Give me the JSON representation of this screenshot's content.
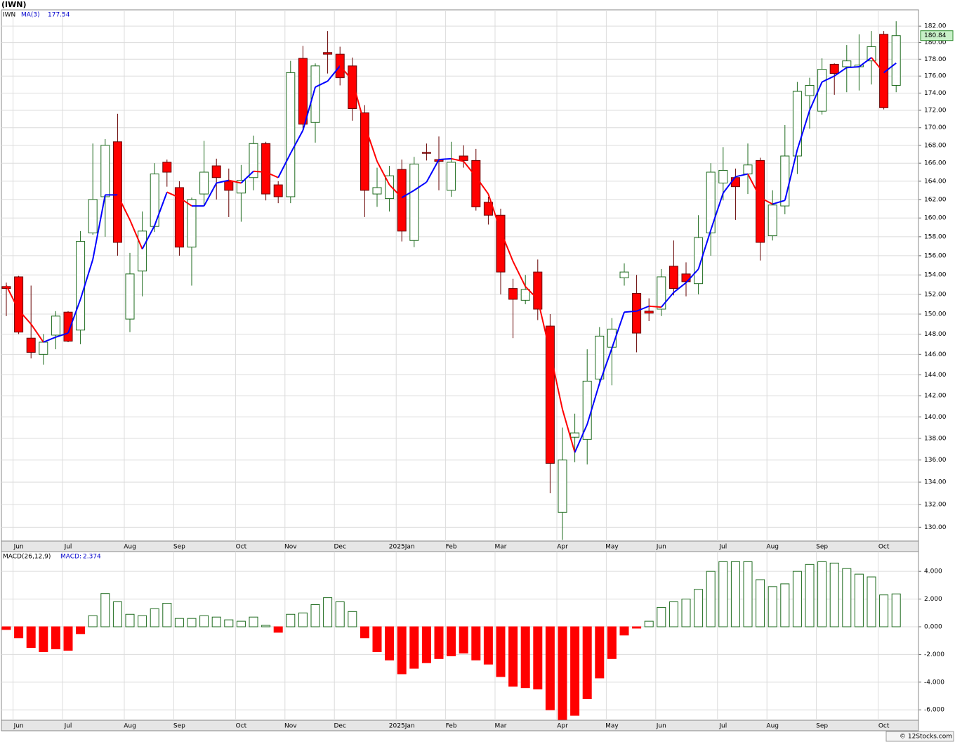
{
  "chart_data": [
    {
      "type": "candlestick",
      "title": "(IWN)",
      "symbol": "IWN",
      "log_y": true,
      "grid": true,
      "categories": [
        null,
        "Jun",
        null,
        null,
        null,
        "Jul",
        null,
        null,
        null,
        null,
        "Aug",
        null,
        null,
        null,
        "Sep",
        null,
        null,
        null,
        null,
        "Oct",
        null,
        null,
        null,
        "Nov",
        null,
        null,
        null,
        "Dec",
        null,
        null,
        null,
        null,
        "2025Jan",
        null,
        null,
        null,
        "Feb",
        null,
        null,
        null,
        "Mar",
        null,
        null,
        null,
        null,
        "Apr",
        null,
        null,
        null,
        "May",
        null,
        null,
        null,
        "Jun",
        null,
        null,
        null,
        null,
        "Jul",
        null,
        null,
        null,
        "Aug",
        null,
        null,
        null,
        "Sep",
        null,
        null,
        null,
        null,
        "Oct",
        null
      ],
      "open": [
        152.8,
        153.8,
        147.6,
        146.0,
        147.9,
        150.2,
        148.4,
        158.4,
        162.3,
        168.4,
        149.5,
        154.4,
        159.1,
        166.1,
        163.3,
        156.9,
        162.6,
        165.7,
        164.0,
        162.7,
        164.4,
        168.2,
        163.6,
        162.3,
        178.1,
        170.6,
        178.8,
        178.6,
        177.2,
        171.7,
        162.6,
        162.1,
        165.3,
        157.6,
        167.2,
        166.4,
        163.0,
        166.8,
        166.3,
        161.7,
        160.3,
        152.6,
        151.4,
        154.3,
        148.8,
        131.3,
        138.1,
        137.9,
        143.6,
        146.7,
        153.7,
        152.1,
        150.3,
        150.5,
        154.9,
        154.1,
        153.1,
        158.4,
        163.8,
        164.4,
        164.8,
        166.3,
        158.1,
        161.3,
        166.8,
        173.7,
        171.9,
        177.4,
        177.1,
        177.1,
        177.8,
        181.0,
        174.9
      ],
      "high": [
        153.2,
        153.9,
        152.9,
        148.0,
        150.3,
        150.3,
        158.6,
        168.2,
        168.7,
        171.6,
        156.3,
        160.7,
        166.0,
        166.4,
        164.0,
        162.2,
        168.5,
        166.5,
        165.4,
        165.8,
        169.1,
        168.4,
        164.0,
        177.8,
        179.6,
        177.5,
        181.4,
        179.5,
        178.2,
        172.6,
        165.5,
        165.7,
        166.4,
        166.7,
        168.2,
        169.0,
        168.4,
        168.0,
        167.6,
        162.3,
        161.0,
        153.6,
        154.0,
        155.6,
        150.0,
        139.0,
        140.3,
        146.5,
        148.7,
        149.6,
        155.2,
        154.0,
        151.6,
        154.6,
        157.6,
        155.3,
        160.3,
        166.0,
        167.8,
        165.4,
        168.2,
        166.6,
        163.0,
        170.3,
        175.3,
        175.8,
        178.1,
        177.5,
        179.7,
        181.0,
        181.4,
        181.4,
        182.6
      ],
      "low": [
        149.8,
        148.0,
        145.6,
        145.0,
        146.5,
        147.2,
        147.0,
        158.2,
        158.0,
        156.0,
        148.2,
        151.8,
        158.5,
        163.4,
        156.0,
        152.9,
        161.3,
        162.0,
        160.1,
        159.6,
        163.0,
        161.9,
        161.6,
        161.6,
        169.9,
        168.3,
        176.3,
        174.9,
        170.8,
        160.1,
        161.2,
        160.7,
        157.5,
        156.9,
        166.3,
        163.0,
        162.3,
        165.5,
        160.8,
        159.3,
        152.0,
        147.6,
        151.0,
        149.4,
        133.0,
        128.9,
        135.8,
        135.6,
        143.0,
        143.0,
        152.9,
        146.2,
        149.3,
        149.8,
        151.9,
        151.8,
        152.0,
        156.0,
        161.9,
        159.8,
        162.6,
        155.5,
        157.6,
        160.4,
        164.8,
        169.9,
        171.5,
        173.8,
        174.1,
        174.3,
        175.0,
        172.1,
        174.1
      ],
      "close": [
        152.6,
        148.2,
        146.2,
        147.2,
        149.8,
        147.3,
        157.5,
        162.0,
        168.0,
        157.4,
        154.1,
        158.6,
        164.8,
        165.0,
        156.9,
        162.0,
        165.0,
        164.4,
        163.0,
        164.1,
        168.2,
        162.6,
        162.3,
        176.4,
        170.4,
        177.2,
        178.6,
        175.8,
        172.2,
        163.0,
        163.3,
        164.6,
        158.6,
        165.9,
        167.1,
        166.2,
        166.1,
        166.3,
        161.2,
        160.3,
        154.3,
        151.5,
        152.5,
        150.5,
        135.7,
        136.0,
        138.5,
        143.4,
        147.8,
        148.5,
        154.3,
        148.1,
        150.1,
        153.8,
        152.6,
        153.3,
        157.9,
        165.0,
        165.2,
        163.4,
        165.8,
        157.4,
        161.4,
        166.8,
        174.2,
        174.9,
        176.8,
        176.3,
        177.8,
        177.3,
        179.5,
        172.3,
        180.84
      ],
      "up_color": "#1e6b1e",
      "down_color": "#ff0000",
      "series": [
        {
          "name": "MA(3)",
          "up_color": "#0000ff",
          "down_color": "#ff0000",
          "values": [
            152.9,
            150.4,
            149.0,
            147.2,
            147.7,
            148.1,
            151.5,
            155.6,
            162.5,
            162.5,
            159.8,
            156.7,
            159.2,
            162.8,
            162.2,
            161.3,
            161.3,
            163.8,
            164.1,
            163.8,
            165.1,
            165.0,
            164.4,
            167.1,
            169.7,
            174.7,
            175.4,
            177.2,
            175.5,
            170.3,
            166.2,
            163.6,
            162.2,
            163.0,
            163.9,
            166.4,
            166.5,
            166.2,
            164.5,
            162.6,
            158.6,
            155.4,
            152.8,
            151.5,
            146.2,
            140.7,
            136.7,
            139.3,
            143.2,
            146.6,
            150.2,
            150.3,
            150.8,
            150.7,
            152.2,
            153.2,
            154.6,
            158.7,
            162.7,
            164.5,
            164.8,
            162.2,
            161.5,
            161.9,
            167.5,
            172.0,
            175.3,
            176.0,
            177.0,
            177.1,
            178.2,
            176.4,
            177.54
          ]
        }
      ],
      "ylim": [
        128.8,
        184
      ],
      "yticks": [
        {
          "value": 130,
          "label": "130.00"
        },
        {
          "value": 132,
          "label": "132.00"
        },
        {
          "value": 134,
          "label": "134.00"
        },
        {
          "value": 136,
          "label": "136.00"
        },
        {
          "value": 138,
          "label": "138.00"
        },
        {
          "value": 140,
          "label": "140.00"
        },
        {
          "value": 142,
          "label": "142.00"
        },
        {
          "value": 144,
          "label": "144.00"
        },
        {
          "value": 146,
          "label": "146.00"
        },
        {
          "value": 148,
          "label": "148.00"
        },
        {
          "value": 150,
          "label": "150.00"
        },
        {
          "value": 152,
          "label": "152.00"
        },
        {
          "value": 154,
          "label": "154.00"
        },
        {
          "value": 156,
          "label": "156.00"
        },
        {
          "value": 158,
          "label": "158.00"
        },
        {
          "value": 160,
          "label": "160.00"
        },
        {
          "value": 162,
          "label": "162.00"
        },
        {
          "value": 164,
          "label": "164.00"
        },
        {
          "value": 166,
          "label": "166.00"
        },
        {
          "value": 168,
          "label": "168.00"
        },
        {
          "value": 170,
          "label": "170.00"
        },
        {
          "value": 172,
          "label": "172.00"
        },
        {
          "value": 174,
          "label": "174.00"
        },
        {
          "value": 176,
          "label": "176.00"
        },
        {
          "value": 178,
          "label": "178.00"
        },
        {
          "value": 180,
          "label": "180.00"
        },
        {
          "value": 182,
          "label": "182.00"
        }
      ]
    },
    {
      "type": "bar",
      "title": "MACD(26,12,9)",
      "value_name": "MACD:",
      "grid": true,
      "categories": [
        null,
        "Jun",
        null,
        null,
        null,
        "Jul",
        null,
        null,
        null,
        null,
        "Aug",
        null,
        null,
        null,
        "Sep",
        null,
        null,
        null,
        null,
        "Oct",
        null,
        null,
        null,
        "Nov",
        null,
        null,
        null,
        "Dec",
        null,
        null,
        null,
        null,
        "2025Jan",
        null,
        null,
        null,
        "Feb",
        null,
        null,
        null,
        "Mar",
        null,
        null,
        null,
        null,
        "Apr",
        null,
        null,
        null,
        "May",
        null,
        null,
        null,
        "Jun",
        null,
        null,
        null,
        null,
        "Jul",
        null,
        null,
        null,
        "Aug",
        null,
        null,
        null,
        "Sep",
        null,
        null,
        null,
        null,
        "Oct",
        null
      ],
      "values": [
        -0.2,
        -0.8,
        -1.5,
        -1.8,
        -1.6,
        -1.7,
        -0.5,
        0.8,
        2.4,
        1.8,
        0.9,
        0.8,
        1.3,
        1.7,
        0.6,
        0.6,
        0.8,
        0.7,
        0.5,
        0.4,
        0.7,
        0.1,
        -0.4,
        0.9,
        1.0,
        1.6,
        2.1,
        1.8,
        1.1,
        -0.8,
        -1.8,
        -2.4,
        -3.4,
        -3.0,
        -2.6,
        -2.3,
        -2.1,
        -1.9,
        -2.4,
        -2.7,
        -3.6,
        -4.3,
        -4.4,
        -4.5,
        -6.0,
        -6.7,
        -6.4,
        -5.2,
        -3.7,
        -2.3,
        -0.6,
        -0.1,
        0.4,
        1.4,
        1.8,
        2.0,
        2.7,
        4.0,
        4.7,
        4.7,
        4.7,
        3.4,
        2.9,
        3.1,
        4.0,
        4.5,
        4.7,
        4.6,
        4.2,
        3.8,
        3.6,
        2.3,
        2.374
      ],
      "up_color": "#1e6b1e",
      "down_color": "#ff0000",
      "ylim": [
        -6.75,
        5.43
      ],
      "yticks": [
        {
          "value": -6,
          "label": "-6.000"
        },
        {
          "value": -4,
          "label": "-4.000"
        },
        {
          "value": -2,
          "label": "-2.000"
        },
        {
          "value": 0,
          "label": "0.000"
        },
        {
          "value": 2,
          "label": "2.000"
        },
        {
          "value": 4,
          "label": "4.000"
        }
      ]
    }
  ],
  "footer": "© 12Stocks.com"
}
